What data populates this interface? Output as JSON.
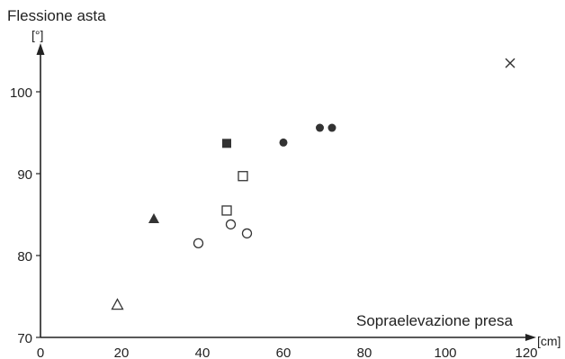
{
  "chart_data": {
    "type": "scatter",
    "ylabel": "Flessione asta",
    "yunit": "[°]",
    "xlabel": "Sopraelevazione presa",
    "xunit": "[cm]",
    "xlim": [
      0,
      120
    ],
    "ylim": [
      70,
      107
    ],
    "xticks": [
      "0",
      "20",
      "40",
      "60",
      "80",
      "100",
      "120"
    ],
    "yticks": [
      "70",
      "80",
      "90",
      "100"
    ],
    "grid": false,
    "series": [
      {
        "marker": "open-triangle",
        "points": [
          {
            "x": 19,
            "y": 74
          }
        ]
      },
      {
        "marker": "filled-triangle",
        "points": [
          {
            "x": 28,
            "y": 84.5
          }
        ]
      },
      {
        "marker": "open-circle",
        "points": [
          {
            "x": 39,
            "y": 81.5
          },
          {
            "x": 47,
            "y": 83.8
          },
          {
            "x": 51,
            "y": 82.7
          }
        ]
      },
      {
        "marker": "open-square",
        "points": [
          {
            "x": 46,
            "y": 85.5
          },
          {
            "x": 50,
            "y": 89.7
          }
        ]
      },
      {
        "marker": "filled-square",
        "points": [
          {
            "x": 46,
            "y": 93.7
          }
        ]
      },
      {
        "marker": "filled-circle",
        "points": [
          {
            "x": 60,
            "y": 93.8
          },
          {
            "x": 69,
            "y": 95.6
          },
          {
            "x": 72,
            "y": 95.6
          }
        ]
      },
      {
        "marker": "cross",
        "points": [
          {
            "x": 116,
            "y": 103.5
          }
        ]
      }
    ]
  }
}
